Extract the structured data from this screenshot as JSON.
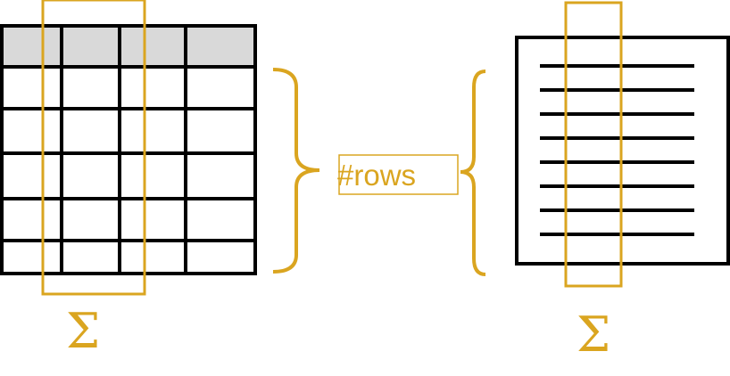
{
  "colors": {
    "accent": "#DAA520",
    "line": "#000000",
    "header_fill": "#D9D9D9",
    "background": "#FFFFFF"
  },
  "labels": {
    "rows": "#rows",
    "sum_left": "Σ",
    "sum_right": "Σ"
  },
  "table": {
    "columns": 4,
    "header_rows": 1,
    "body_rows": 5
  },
  "document": {
    "text_lines": 8
  }
}
